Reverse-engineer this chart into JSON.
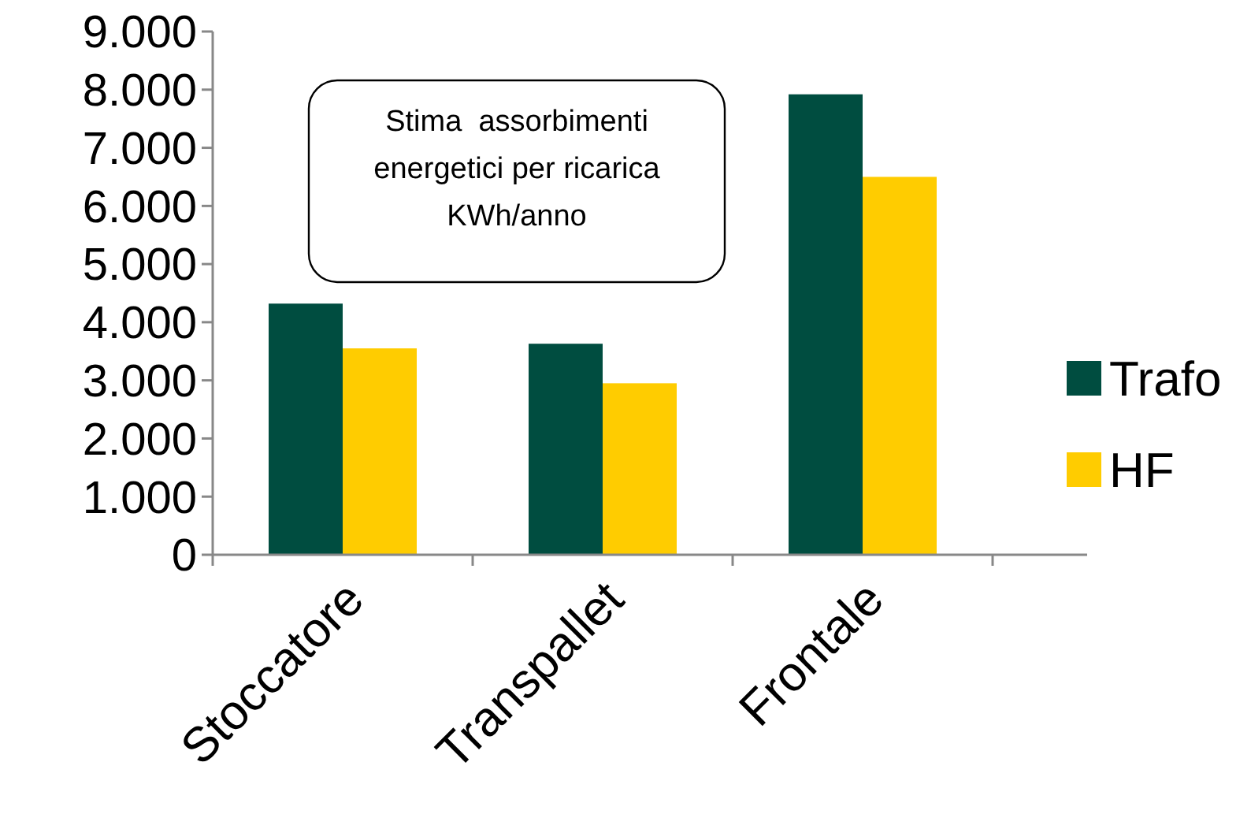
{
  "chart_data": {
    "type": "bar",
    "categories": [
      "Stoccatore",
      "Transpallet",
      "Frontale"
    ],
    "series": [
      {
        "name": "Trafo",
        "color": "#004d40",
        "values": [
          4320,
          3630,
          7920
        ]
      },
      {
        "name": "HF",
        "color": "#ffcc00",
        "values": [
          3550,
          2950,
          6500
        ]
      }
    ],
    "ylim": [
      0,
      9000
    ],
    "yticks": [
      {
        "value": 0,
        "label": "0"
      },
      {
        "value": 1000,
        "label": "1.000"
      },
      {
        "value": 2000,
        "label": "2.000"
      },
      {
        "value": 3000,
        "label": "3.000"
      },
      {
        "value": 4000,
        "label": "4.000"
      },
      {
        "value": 5000,
        "label": "5.000"
      },
      {
        "value": 6000,
        "label": "6.000"
      },
      {
        "value": 7000,
        "label": "7.000"
      },
      {
        "value": 8000,
        "label": "8.000"
      },
      {
        "value": 9000,
        "label": "9.000"
      }
    ],
    "grid": false,
    "legend": "right",
    "annotations": [
      "Stima  assorbimenti\nenergetici per ricarica\nKWh/anno"
    ]
  }
}
